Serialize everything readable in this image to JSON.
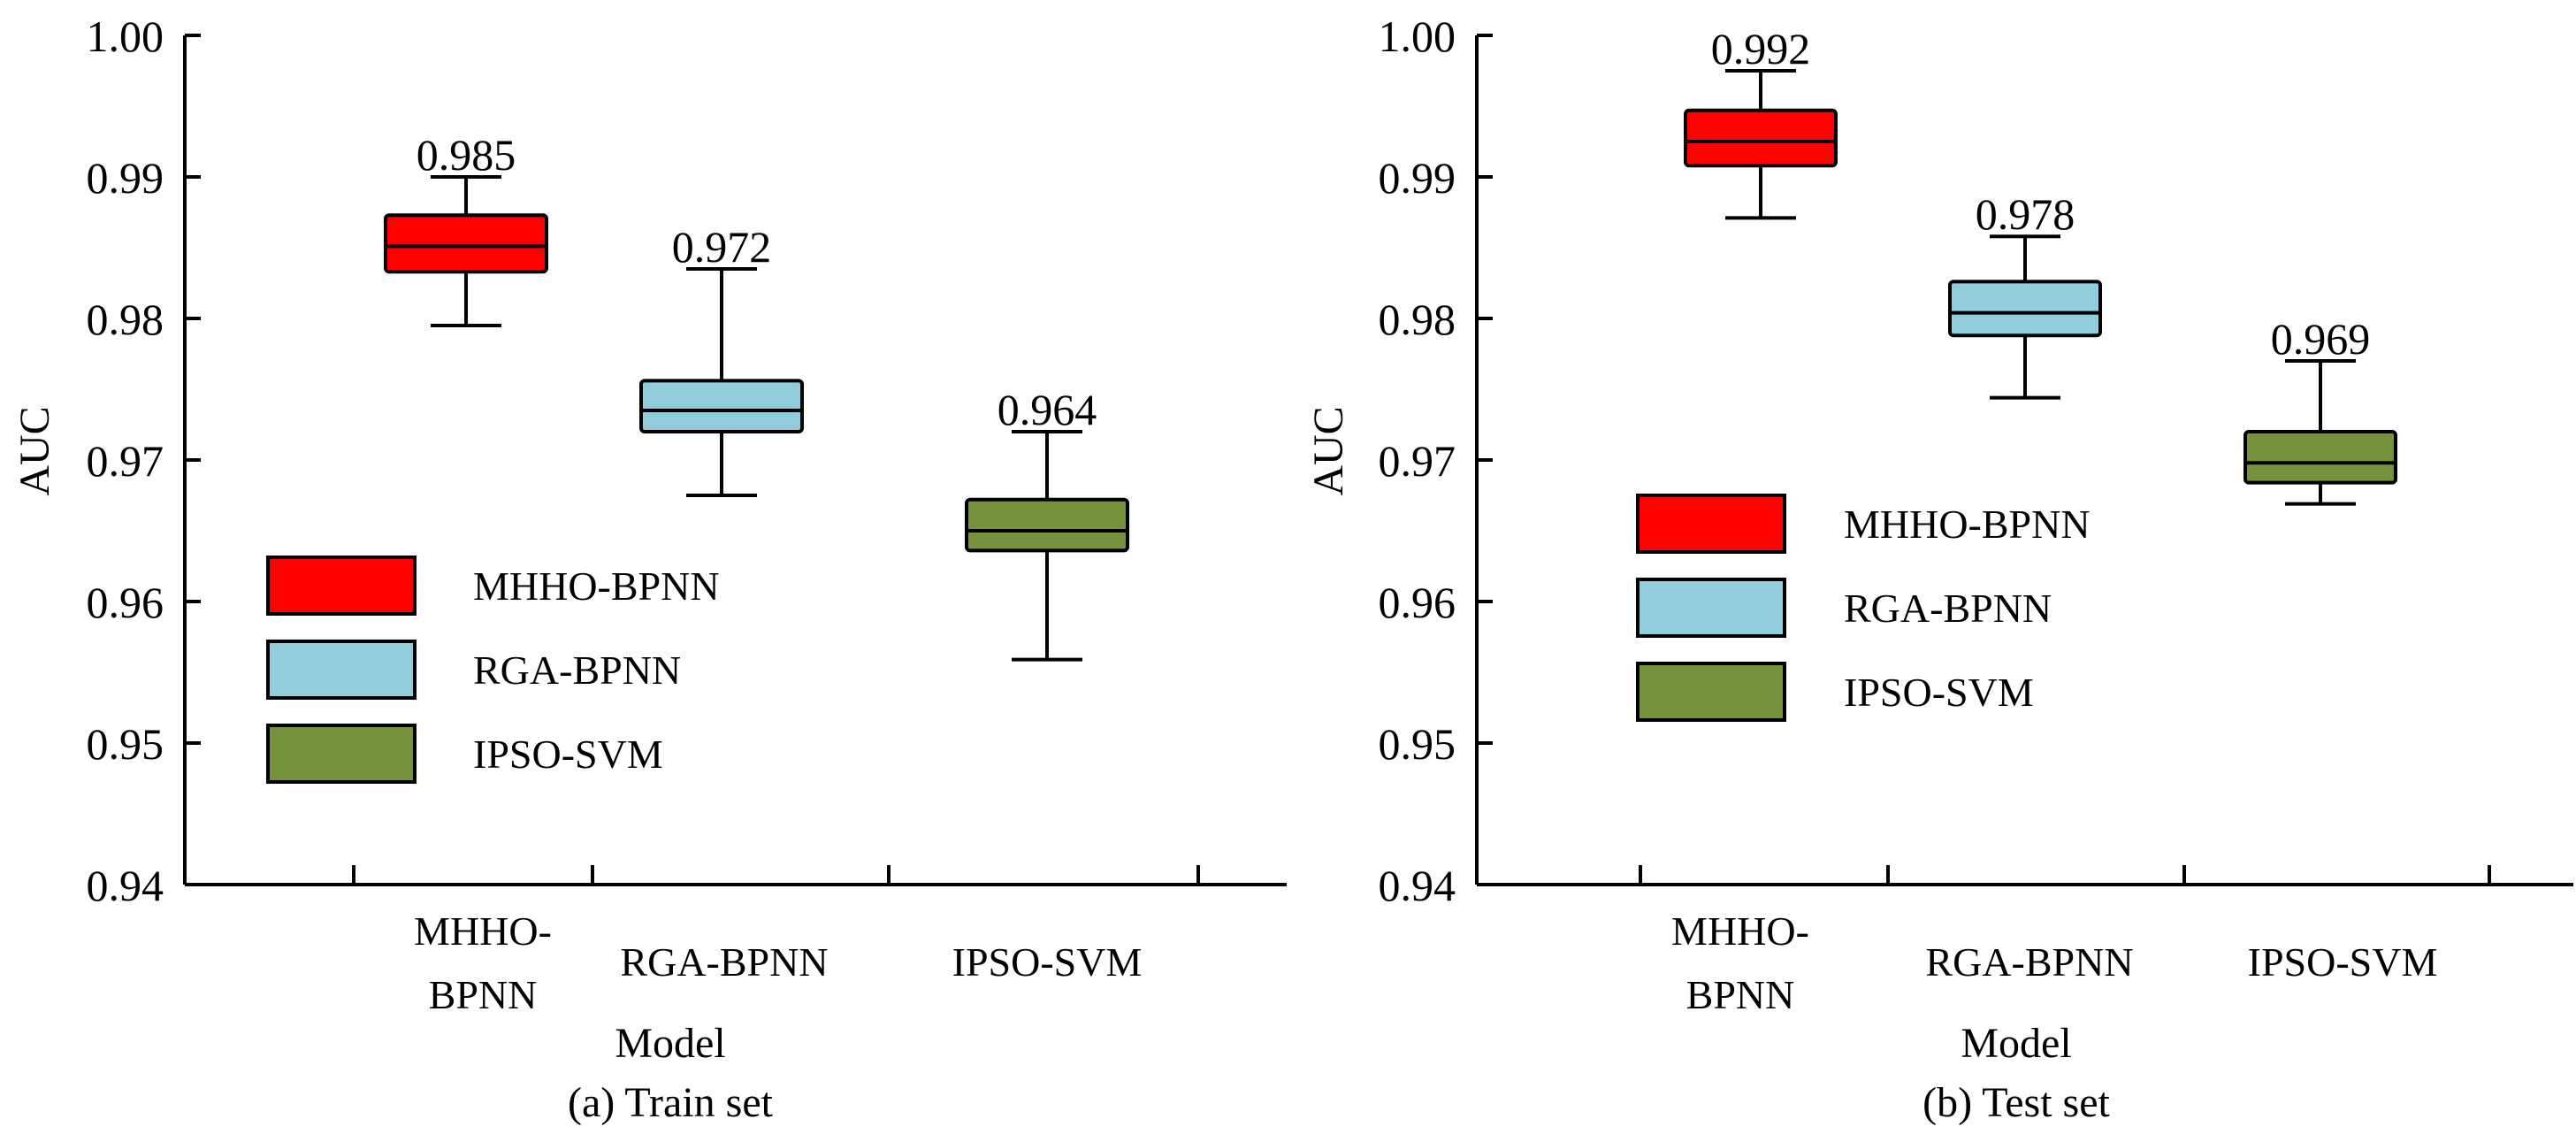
{
  "chart_data": [
    {
      "type": "box",
      "caption": "(a) Train set",
      "xlabel": "Model",
      "ylabel": "AUC",
      "ylim": [
        0.94,
        1.0
      ],
      "yticks": [
        "0.94",
        "0.95",
        "0.96",
        "0.97",
        "0.98",
        "0.99",
        "1.00"
      ],
      "categories": [
        [
          "MHHO-",
          "BPNN"
        ],
        [
          "RGA-BPNN"
        ],
        [
          "IPSO-SVM"
        ]
      ],
      "legend_placement": "lower-left",
      "series": [
        {
          "name": "MHHO-BPNN",
          "color": "#ff0000",
          "whisker_low": 0.9795,
          "q1": 0.9833,
          "median": 0.9851,
          "q3": 0.9873,
          "whisker_high": 0.99,
          "label": "0.985"
        },
        {
          "name": "RGA-BPNN",
          "color": "#92cddc",
          "whisker_low": 0.9675,
          "q1": 0.972,
          "median": 0.9735,
          "q3": 0.9756,
          "whisker_high": 0.9835,
          "label": "0.972"
        },
        {
          "name": "IPSO-SVM",
          "color": "#76923c",
          "whisker_low": 0.9559,
          "q1": 0.9636,
          "median": 0.965,
          "q3": 0.9672,
          "whisker_high": 0.972,
          "label": "0.964"
        }
      ]
    },
    {
      "type": "box",
      "caption": "(b) Test set",
      "xlabel": "Model",
      "ylabel": "AUC",
      "ylim": [
        0.94,
        1.0
      ],
      "yticks": [
        "0.94",
        "0.95",
        "0.96",
        "0.97",
        "0.98",
        "0.99",
        "1.00"
      ],
      "categories": [
        [
          "MHHO-",
          "BPNN"
        ],
        [
          "RGA-BPNN"
        ],
        [
          "IPSO-SVM"
        ]
      ],
      "legend_placement": "center-left",
      "series": [
        {
          "name": "MHHO-BPNN",
          "color": "#ff0000",
          "whisker_low": 0.9871,
          "q1": 0.9908,
          "median": 0.9925,
          "q3": 0.9947,
          "whisker_high": 0.9975,
          "label": "0.992"
        },
        {
          "name": "RGA-BPNN",
          "color": "#92cddc",
          "whisker_low": 0.9744,
          "q1": 0.9788,
          "median": 0.9804,
          "q3": 0.9826,
          "whisker_high": 0.9858,
          "label": "0.978"
        },
        {
          "name": "IPSO-SVM",
          "color": "#76923c",
          "whisker_low": 0.9669,
          "q1": 0.9684,
          "median": 0.9698,
          "q3": 0.972,
          "whisker_high": 0.977,
          "label": "0.969"
        }
      ]
    }
  ]
}
